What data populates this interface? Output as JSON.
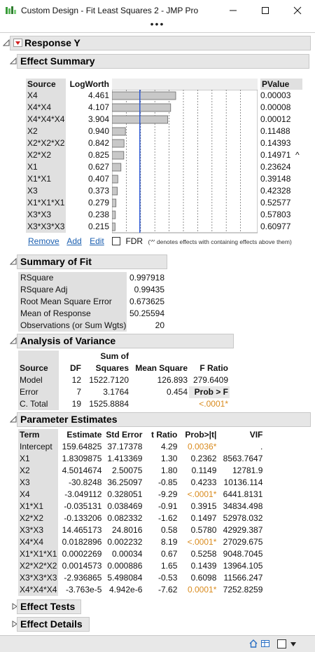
{
  "window": {
    "title": "Custom Design - Fit Least Squares 2 - JMP Pro",
    "dots": "•••"
  },
  "response": {
    "title": "Response Y"
  },
  "effect_summary": {
    "title": "Effect Summary",
    "headers": {
      "source": "Source",
      "logworth": "LogWorth",
      "pvalue": "PValue"
    },
    "rows": [
      {
        "source": "X4",
        "logworth": "4.461",
        "pvalue": "0.00003",
        "flag": ""
      },
      {
        "source": "X4*X4",
        "logworth": "4.107",
        "pvalue": "0.00008",
        "flag": ""
      },
      {
        "source": "X4*X4*X4",
        "logworth": "3.904",
        "pvalue": "0.00012",
        "flag": ""
      },
      {
        "source": "X2",
        "logworth": "0.940",
        "pvalue": "0.11488",
        "flag": ""
      },
      {
        "source": "X2*X2*X2",
        "logworth": "0.842",
        "pvalue": "0.14393",
        "flag": ""
      },
      {
        "source": "X2*X2",
        "logworth": "0.825",
        "pvalue": "0.14971",
        "flag": "^"
      },
      {
        "source": "X1",
        "logworth": "0.627",
        "pvalue": "0.23624",
        "flag": ""
      },
      {
        "source": "X1*X1",
        "logworth": "0.407",
        "pvalue": "0.39148",
        "flag": ""
      },
      {
        "source": "X3",
        "logworth": "0.373",
        "pvalue": "0.42328",
        "flag": ""
      },
      {
        "source": "X1*X1*X1",
        "logworth": "0.279",
        "pvalue": "0.52577",
        "flag": ""
      },
      {
        "source": "X3*X3",
        "logworth": "0.238",
        "pvalue": "0.57803",
        "flag": ""
      },
      {
        "source": "X3*X3*X3",
        "logworth": "0.215",
        "pvalue": "0.60977",
        "flag": ""
      }
    ],
    "bar_max": 10,
    "ref_line": 2,
    "links": {
      "remove": "Remove",
      "add": "Add",
      "edit": "Edit"
    },
    "fdr_label": "FDR",
    "note": "('^' denotes effects with containing effects above them)"
  },
  "summary_of_fit": {
    "title": "Summary of Fit",
    "rows": [
      {
        "label": "RSquare",
        "value": "0.997918"
      },
      {
        "label": "RSquare Adj",
        "value": "0.99435"
      },
      {
        "label": "Root Mean Square Error",
        "value": "0.673625"
      },
      {
        "label": "Mean of Response",
        "value": "50.25594"
      },
      {
        "label": "Observations (or Sum Wgts)",
        "value": "20"
      }
    ]
  },
  "anova": {
    "title": "Analysis of Variance",
    "headers": {
      "source": "Source",
      "df": "DF",
      "ss_top": "Sum of",
      "ss": "Squares",
      "ms": "Mean Square",
      "f": "F Ratio"
    },
    "rows": [
      {
        "source": "Model",
        "df": "12",
        "ss": "1522.7120",
        "ms": "126.893",
        "f": "279.6409"
      },
      {
        "source": "Error",
        "df": "7",
        "ss": "3.1764",
        "ms": "0.454",
        "f": "Prob > F"
      },
      {
        "source": "C. Total",
        "df": "19",
        "ss": "1525.8884",
        "ms": "",
        "f": "<.0001*"
      }
    ]
  },
  "parameter_estimates": {
    "title": "Parameter Estimates",
    "headers": {
      "term": "Term",
      "estimate": "Estimate",
      "stderr": "Std Error",
      "t": "t Ratio",
      "p": "Prob>|t|",
      "vif": "VIF"
    },
    "rows": [
      {
        "term": "Intercept",
        "estimate": "159.64825",
        "stderr": "37.17378",
        "t": "4.29",
        "p": "0.0036*",
        "sig": true,
        "vif": "."
      },
      {
        "term": "X1",
        "estimate": "1.8309875",
        "stderr": "1.413369",
        "t": "1.30",
        "p": "0.2362",
        "sig": false,
        "vif": "8563.7647"
      },
      {
        "term": "X2",
        "estimate": "4.5014674",
        "stderr": "2.50075",
        "t": "1.80",
        "p": "0.1149",
        "sig": false,
        "vif": "12781.9"
      },
      {
        "term": "X3",
        "estimate": "-30.8248",
        "stderr": "36.25097",
        "t": "-0.85",
        "p": "0.4233",
        "sig": false,
        "vif": "10136.114"
      },
      {
        "term": "X4",
        "estimate": "-3.049112",
        "stderr": "0.328051",
        "t": "-9.29",
        "p": "<.0001*",
        "sig": true,
        "vif": "6441.8131"
      },
      {
        "term": "X1*X1",
        "estimate": "-0.035131",
        "stderr": "0.038469",
        "t": "-0.91",
        "p": "0.3915",
        "sig": false,
        "vif": "34834.498"
      },
      {
        "term": "X2*X2",
        "estimate": "-0.133206",
        "stderr": "0.082332",
        "t": "-1.62",
        "p": "0.1497",
        "sig": false,
        "vif": "52978.032"
      },
      {
        "term": "X3*X3",
        "estimate": "14.465173",
        "stderr": "24.8016",
        "t": "0.58",
        "p": "0.5780",
        "sig": false,
        "vif": "42929.387"
      },
      {
        "term": "X4*X4",
        "estimate": "0.0182896",
        "stderr": "0.002232",
        "t": "8.19",
        "p": "<.0001*",
        "sig": true,
        "vif": "27029.675"
      },
      {
        "term": "X1*X1*X1",
        "estimate": "0.0002269",
        "stderr": "0.00034",
        "t": "0.67",
        "p": "0.5258",
        "sig": false,
        "vif": "9048.7045"
      },
      {
        "term": "X2*X2*X2",
        "estimate": "0.0014573",
        "stderr": "0.000886",
        "t": "1.65",
        "p": "0.1439",
        "sig": false,
        "vif": "13964.105"
      },
      {
        "term": "X3*X3*X3",
        "estimate": "-2.936865",
        "stderr": "5.498084",
        "t": "-0.53",
        "p": "0.6098",
        "sig": false,
        "vif": "11566.247"
      },
      {
        "term": "X4*X4*X4",
        "estimate": "-3.763e-5",
        "stderr": "4.942e-6",
        "t": "-7.62",
        "p": "0.0001*",
        "sig": true,
        "vif": "7252.8259"
      }
    ]
  },
  "effect_tests": {
    "title": "Effect Tests"
  },
  "effect_details": {
    "title": "Effect Details"
  },
  "colors": {
    "significant": "#d98b1e",
    "link": "#1b5fb0",
    "ref_line": "#1f4fd6",
    "header_bg": "#e6e6e6"
  }
}
